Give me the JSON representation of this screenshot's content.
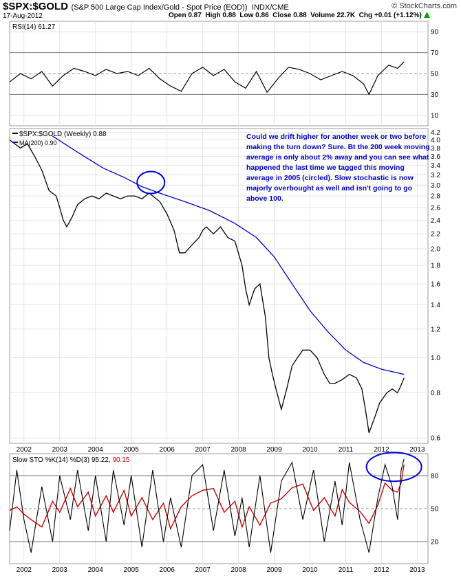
{
  "header": {
    "symbol": "$SPX:$GOLD",
    "description": "(S&P 500 Large Cap Index/Gold - Spot Price (EOD))",
    "exchange": "INDX/CME",
    "date": "17-Aug-2012",
    "watermark": "© StockCharts.com",
    "open": "Open 0.87",
    "high": "High 0.88",
    "low": "Low 0.86",
    "close": "Close 0.88",
    "volume": "Volume 22.7K",
    "change": "Chg +0.01 (+1.12%)",
    "change_arrow": "up-arrow-icon",
    "colors": {
      "accent": "#0000cc",
      "price": "#000000",
      "up_marker": "#cc0000",
      "border": "#999999"
    }
  },
  "rsi_panel": {
    "label": "RSI(14) 61.27",
    "ticks": [
      "90",
      "70",
      "50",
      "30",
      "10"
    ]
  },
  "price_panel": {
    "legend_main": "$SPX:$GOLD (Weekly) 0.88",
    "legend_ma": "MA(200) 0.90",
    "annotation": "Could we drift higher for another week or two before making the turn down? Sure. Bt the 200 week moving average is only about 2% away and you can see what happened the last time we tagged this moving average in 2005 (circled). Slow stochastic is now majorly overbought as well and isn't going to go above 100.",
    "y_ticks": [
      "4.2",
      "4.0",
      "3.8",
      "3.6",
      "3.4",
      "3.2",
      "3.0",
      "2.8",
      "2.6",
      "2.4",
      "2.2",
      "2.0",
      "1.8",
      "1.6",
      "1.4",
      "1.2",
      "1.0",
      "0.8",
      "0.6"
    ]
  },
  "sto_panel": {
    "label_prefix": "Slow STO %K(14) %D(3) 95.22,",
    "label_suffix": "90.15",
    "ticks": [
      "80",
      "50",
      "20"
    ]
  },
  "x_ticks": [
    "2002",
    "2003",
    "2004",
    "2005",
    "2006",
    "2007",
    "2008",
    "2009",
    "2010",
    "2011",
    "2012",
    "2013"
  ],
  "chart_data": {
    "type": "line",
    "title": "$SPX:$GOLD (S&P 500 Large Cap Index/Gold - Spot Price (EOD))",
    "scale": "log",
    "price_series": {
      "name": "$SPX:$GOLD (Weekly)",
      "points": [
        [
          2001.6,
          4.0
        ],
        [
          2001.9,
          3.8
        ],
        [
          2002.1,
          3.9
        ],
        [
          2002.3,
          3.6
        ],
        [
          2002.5,
          3.3
        ],
        [
          2002.7,
          2.9
        ],
        [
          2002.9,
          2.8
        ],
        [
          2003.0,
          2.6
        ],
        [
          2003.1,
          2.4
        ],
        [
          2003.2,
          2.3
        ],
        [
          2003.35,
          2.45
        ],
        [
          2003.5,
          2.65
        ],
        [
          2003.7,
          2.75
        ],
        [
          2003.9,
          2.8
        ],
        [
          2004.1,
          2.75
        ],
        [
          2004.3,
          2.85
        ],
        [
          2004.5,
          2.8
        ],
        [
          2004.7,
          2.75
        ],
        [
          2004.9,
          2.8
        ],
        [
          2005.1,
          2.8
        ],
        [
          2005.3,
          2.75
        ],
        [
          2005.5,
          2.85
        ],
        [
          2005.6,
          2.8
        ],
        [
          2005.8,
          2.7
        ],
        [
          2006.0,
          2.5
        ],
        [
          2006.2,
          2.25
        ],
        [
          2006.35,
          1.95
        ],
        [
          2006.5,
          1.95
        ],
        [
          2006.7,
          2.05
        ],
        [
          2006.9,
          2.15
        ],
        [
          2007.0,
          2.25
        ],
        [
          2007.1,
          2.3
        ],
        [
          2007.3,
          2.2
        ],
        [
          2007.5,
          2.3
        ],
        [
          2007.7,
          2.15
        ],
        [
          2007.9,
          2.1
        ],
        [
          2008.1,
          1.8
        ],
        [
          2008.2,
          1.55
        ],
        [
          2008.3,
          1.4
        ],
        [
          2008.45,
          1.55
        ],
        [
          2008.6,
          1.6
        ],
        [
          2008.75,
          1.3
        ],
        [
          2008.85,
          1.0
        ],
        [
          2008.95,
          0.9
        ],
        [
          2009.05,
          0.82
        ],
        [
          2009.2,
          0.72
        ],
        [
          2009.35,
          0.82
        ],
        [
          2009.5,
          0.95
        ],
        [
          2009.65,
          1.0
        ],
        [
          2009.8,
          1.05
        ],
        [
          2010.0,
          1.05
        ],
        [
          2010.2,
          1.0
        ],
        [
          2010.4,
          0.9
        ],
        [
          2010.55,
          0.85
        ],
        [
          2010.7,
          0.85
        ],
        [
          2010.9,
          0.87
        ],
        [
          2011.1,
          0.9
        ],
        [
          2011.3,
          0.88
        ],
        [
          2011.45,
          0.82
        ],
        [
          2011.55,
          0.72
        ],
        [
          2011.65,
          0.62
        ],
        [
          2011.8,
          0.68
        ],
        [
          2011.95,
          0.75
        ],
        [
          2012.15,
          0.8
        ],
        [
          2012.3,
          0.82
        ],
        [
          2012.45,
          0.8
        ],
        [
          2012.55,
          0.84
        ],
        [
          2012.63,
          0.88
        ]
      ]
    },
    "ma_series": {
      "name": "MA(200)",
      "points": [
        [
          2002.8,
          4.1
        ],
        [
          2003.5,
          3.7
        ],
        [
          2004.2,
          3.35
        ],
        [
          2004.8,
          3.15
        ],
        [
          2005.3,
          2.97
        ],
        [
          2005.8,
          2.85
        ],
        [
          2006.5,
          2.7
        ],
        [
          2007.2,
          2.55
        ],
        [
          2007.9,
          2.35
        ],
        [
          2008.5,
          2.15
        ],
        [
          2009.0,
          1.9
        ],
        [
          2009.5,
          1.6
        ],
        [
          2010.0,
          1.35
        ],
        [
          2010.5,
          1.18
        ],
        [
          2011.0,
          1.05
        ],
        [
          2011.5,
          0.97
        ],
        [
          2012.0,
          0.93
        ],
        [
          2012.63,
          0.9
        ]
      ]
    },
    "rsi_series": {
      "name": "RSI(14)",
      "points": [
        [
          2001.6,
          42
        ],
        [
          2001.9,
          50
        ],
        [
          2002.2,
          45
        ],
        [
          2002.5,
          52
        ],
        [
          2002.8,
          38
        ],
        [
          2003.1,
          48
        ],
        [
          2003.4,
          55
        ],
        [
          2003.7,
          52
        ],
        [
          2004.0,
          48
        ],
        [
          2004.3,
          54
        ],
        [
          2004.6,
          50
        ],
        [
          2004.9,
          52
        ],
        [
          2005.2,
          48
        ],
        [
          2005.5,
          55
        ],
        [
          2005.8,
          45
        ],
        [
          2006.1,
          38
        ],
        [
          2006.4,
          33
        ],
        [
          2006.7,
          50
        ],
        [
          2007.0,
          56
        ],
        [
          2007.3,
          48
        ],
        [
          2007.6,
          54
        ],
        [
          2007.9,
          42
        ],
        [
          2008.2,
          36
        ],
        [
          2008.5,
          52
        ],
        [
          2008.8,
          32
        ],
        [
          2009.1,
          45
        ],
        [
          2009.4,
          56
        ],
        [
          2009.7,
          54
        ],
        [
          2010.0,
          50
        ],
        [
          2010.3,
          44
        ],
        [
          2010.6,
          48
        ],
        [
          2010.9,
          52
        ],
        [
          2011.2,
          48
        ],
        [
          2011.5,
          40
        ],
        [
          2011.65,
          30
        ],
        [
          2011.9,
          48
        ],
        [
          2012.2,
          58
        ],
        [
          2012.45,
          55
        ],
        [
          2012.63,
          61.27
        ]
      ]
    },
    "sto_k_series": {
      "name": "%K(14)",
      "points": [
        [
          2001.6,
          30
        ],
        [
          2001.8,
          85
        ],
        [
          2002.0,
          40
        ],
        [
          2002.2,
          10
        ],
        [
          2002.5,
          70
        ],
        [
          2002.8,
          20
        ],
        [
          2003.0,
          80
        ],
        [
          2003.3,
          40
        ],
        [
          2003.5,
          85
        ],
        [
          2003.8,
          30
        ],
        [
          2004.0,
          80
        ],
        [
          2004.3,
          20
        ],
        [
          2004.5,
          85
        ],
        [
          2004.8,
          35
        ],
        [
          2005.0,
          80
        ],
        [
          2005.3,
          15
        ],
        [
          2005.6,
          85
        ],
        [
          2005.9,
          20
        ],
        [
          2006.1,
          60
        ],
        [
          2006.4,
          15
        ],
        [
          2006.7,
          80
        ],
        [
          2007.0,
          90
        ],
        [
          2007.3,
          30
        ],
        [
          2007.6,
          85
        ],
        [
          2007.9,
          25
        ],
        [
          2008.1,
          60
        ],
        [
          2008.3,
          15
        ],
        [
          2008.6,
          80
        ],
        [
          2008.9,
          10
        ],
        [
          2009.2,
          75
        ],
        [
          2009.5,
          92
        ],
        [
          2009.8,
          40
        ],
        [
          2010.1,
          85
        ],
        [
          2010.4,
          20
        ],
        [
          2010.7,
          75
        ],
        [
          2010.9,
          35
        ],
        [
          2011.1,
          92
        ],
        [
          2011.4,
          40
        ],
        [
          2011.65,
          10
        ],
        [
          2011.9,
          60
        ],
        [
          2012.1,
          90
        ],
        [
          2012.3,
          70
        ],
        [
          2012.45,
          40
        ],
        [
          2012.55,
          85
        ],
        [
          2012.63,
          95.22
        ]
      ]
    },
    "sto_d_series": {
      "name": "%D(3)",
      "last": 90.15
    },
    "x_range": [
      2001.6,
      2013.3
    ],
    "price_ylim": [
      0.58,
      4.3
    ],
    "rsi_ylim": [
      0,
      100
    ],
    "sto_ylim": [
      0,
      100
    ],
    "grid": true,
    "legend_position": "top-left"
  }
}
